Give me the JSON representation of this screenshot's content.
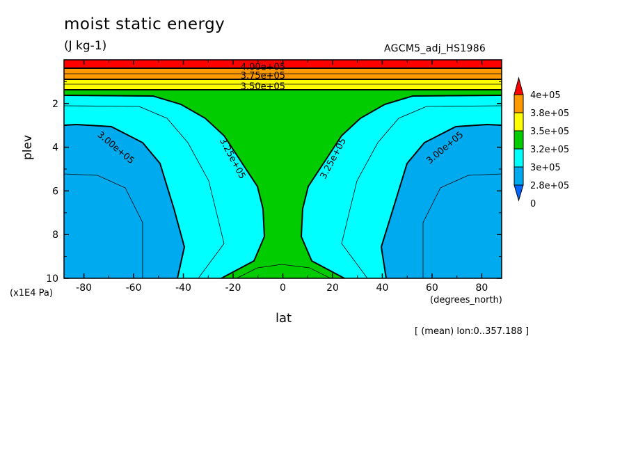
{
  "chart_data": {
    "type": "heatmap",
    "title": "moist static energy",
    "units": "(J kg-1)",
    "model_label": "AGCM5_adj_HS1986",
    "xlabel": "lat",
    "xunit": "(degrees_north)",
    "ylabel": "plev",
    "yunit": "(x1E4 Pa)",
    "footnote": "[ (mean) lon:0..357.188 ]",
    "x_range": [
      -88,
      88
    ],
    "y_range": [
      0,
      10
    ],
    "y_inverted": true,
    "x_ticks": [
      -80,
      -60,
      -40,
      -20,
      0,
      20,
      40,
      60,
      80
    ],
    "x_tick_labels": [
      "-80",
      "-60",
      "-40",
      "-20",
      "0",
      "20",
      "40",
      "60",
      "80"
    ],
    "y_ticks": [
      2,
      4,
      6,
      8,
      10
    ],
    "y_tick_labels": [
      "2",
      "4",
      "6",
      "8",
      "10"
    ],
    "contour_labels": [
      {
        "text": "4.00e+05",
        "lat": -8,
        "plev": 0.3
      },
      {
        "text": "3.75e+05",
        "lat": -8,
        "plev": 0.7
      },
      {
        "text": "3.50e+05",
        "lat": -8,
        "plev": 1.2
      },
      {
        "text": "3.00e+05",
        "lat": -67,
        "plev": 4.0
      },
      {
        "text": "3.25e+05",
        "lat": -20,
        "plev": 4.5
      },
      {
        "text": "3.25e+05",
        "lat": 20,
        "plev": 4.5
      },
      {
        "text": "3.00e+05",
        "lat": 65,
        "plev": 4.0
      }
    ],
    "colorbar": {
      "labels": [
        "4e+05",
        "3.8e+05",
        "3.5e+05",
        "3.2e+05",
        "3e+05",
        "2.8e+05",
        "0"
      ],
      "colors": [
        "#ff0000",
        "#ff9900",
        "#ffff00",
        "#00cc00",
        "#00ffff",
        "#00aaee",
        "#0066ff"
      ]
    },
    "colors": {
      "band_red": "#ff0000",
      "band_orange": "#ff9900",
      "band_yellow": "#ffff00",
      "band_green": "#00cc00",
      "band_cyan": "#00ffff",
      "band_blue": "#00aaee"
    }
  }
}
